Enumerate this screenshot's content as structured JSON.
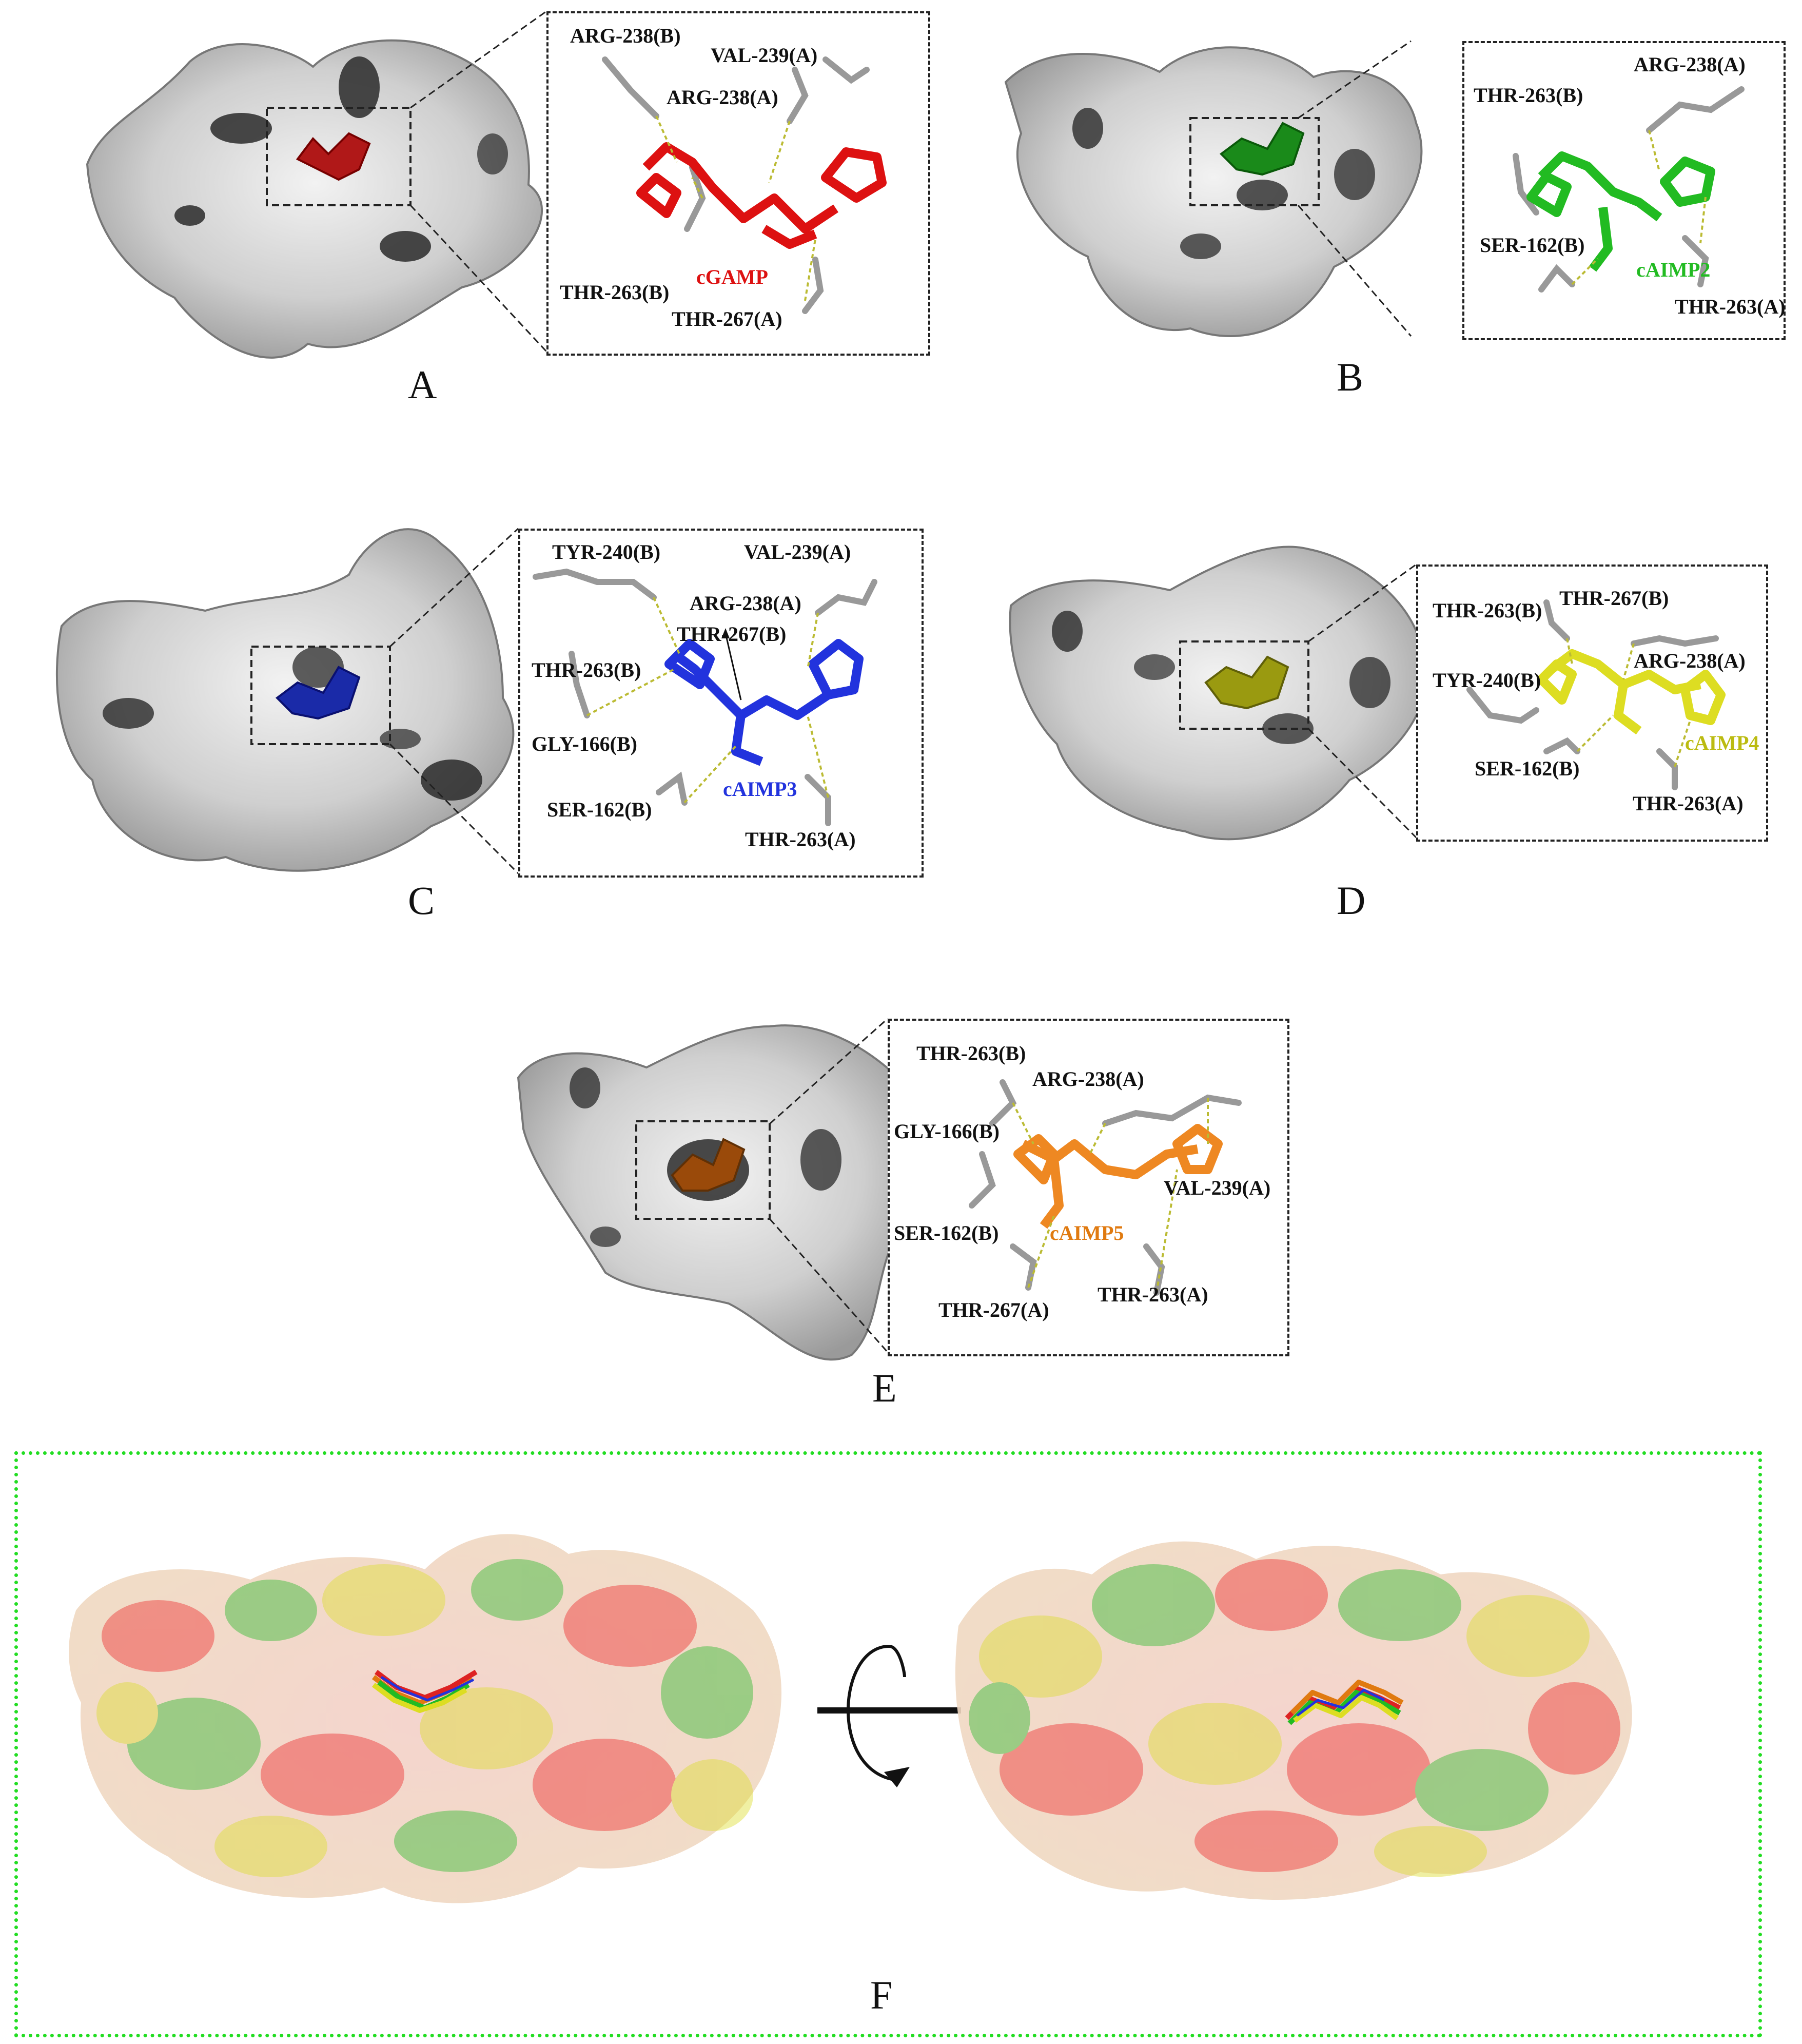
{
  "panels": {
    "A": {
      "label": "A",
      "ligand": "cGAMP",
      "ligand_color": "#dd1111",
      "residues": [
        "ARG-238(B)",
        "VAL-239(A)",
        "ARG-238(A)",
        "THR-263(B)",
        "THR-267(A)"
      ]
    },
    "B": {
      "label": "B",
      "ligand": "cAIMP2",
      "ligand_color": "#22bb22",
      "residues": [
        "ARG-238(A)",
        "THR-263(B)",
        "SER-162(B)",
        "THR-263(A)"
      ]
    },
    "C": {
      "label": "C",
      "ligand": "cAIMP3",
      "ligand_color": "#2233dd",
      "residues": [
        "TYR-240(B)",
        "VAL-239(A)",
        "ARG-238(A)",
        "THR-267(B)",
        "THR-263(B)",
        "GLY-166(B)",
        "SER-162(B)",
        "THR-263(A)"
      ]
    },
    "D": {
      "label": "D",
      "ligand": "cAIMP4",
      "ligand_color": "#bbbb11",
      "residues": [
        "THR-263(B)",
        "THR-267(B)",
        "ARG-238(A)",
        "TYR-240(B)",
        "SER-162(B)",
        "THR-263(A)"
      ]
    },
    "E": {
      "label": "E",
      "ligand": "cAIMP5",
      "ligand_color": "#e07a10",
      "residues": [
        "THR-263(B)",
        "ARG-238(A)",
        "GLY-166(B)",
        "VAL-239(A)",
        "SER-162(B)",
        "THR-267(A)",
        "THR-263(A)"
      ]
    },
    "F": {
      "label": "F"
    }
  },
  "colors": {
    "surface": "#d4d4d4",
    "surface_shadow": "#2a2a2a",
    "overlay_border": "#22dd22"
  }
}
